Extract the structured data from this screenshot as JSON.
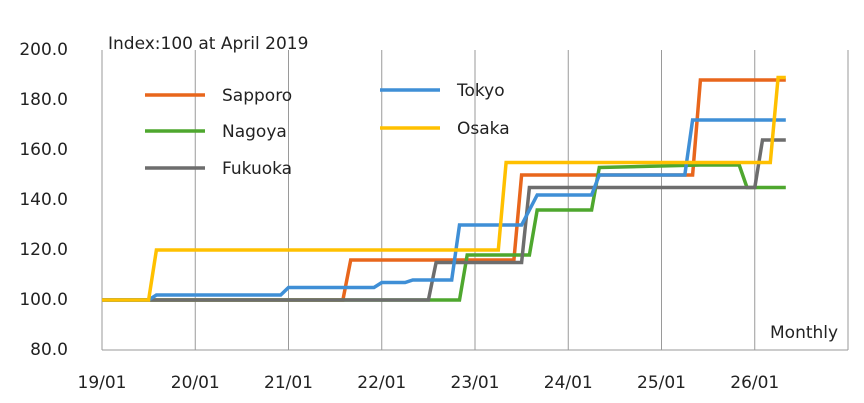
{
  "chart_data": {
    "type": "line",
    "annotations": [
      "Index:100 at April 2019",
      "Monthly"
    ],
    "xlim": [
      "19/01",
      "27/01"
    ],
    "xticks": [
      "19/01",
      "20/01",
      "21/01",
      "22/01",
      "23/01",
      "24/01",
      "25/01",
      "26/01"
    ],
    "ylim": [
      80,
      200
    ],
    "yticks": [
      {
        "value": 80,
        "label": "80.0"
      },
      {
        "value": 100,
        "label": "100.0"
      },
      {
        "value": 120,
        "label": "120.0"
      },
      {
        "value": 140,
        "label": "140.0"
      },
      {
        "value": 160,
        "label": "160.0"
      },
      {
        "value": 180,
        "label": "180.0"
      },
      {
        "value": 200,
        "label": "200.0"
      }
    ],
    "grid": "vertical",
    "series": [
      {
        "name": "Sapporo",
        "color": "#e8661c",
        "x": [
          "19/01",
          "21/08",
          "21/09",
          "23/06",
          "23/07",
          "25/05",
          "25/06",
          "26/05"
        ],
        "values": [
          100,
          100,
          116,
          116,
          150,
          150,
          188,
          188
        ]
      },
      {
        "name": "Nagoya",
        "color": "#4ea72e",
        "x": [
          "19/01",
          "22/11",
          "22/12",
          "23/08",
          "23/09",
          "24/04",
          "24/05",
          "25/06",
          "25/11",
          "25/12",
          "26/05"
        ],
        "values": [
          100,
          100,
          118,
          118,
          136,
          136,
          153,
          154,
          154,
          145,
          145
        ]
      },
      {
        "name": "Fukuoka",
        "color": "#6d6d6d",
        "x": [
          "19/01",
          "22/07",
          "22/08",
          "23/07",
          "23/08",
          "26/01",
          "26/02",
          "26/05"
        ],
        "values": [
          100,
          100,
          115,
          115,
          145,
          145,
          164,
          164
        ]
      },
      {
        "name": "Tokyo",
        "color": "#3f8fd6",
        "x": [
          "19/01",
          "19/07",
          "19/08",
          "20/12",
          "21/01",
          "21/12",
          "22/01",
          "22/04",
          "22/05",
          "22/10",
          "22/11",
          "23/07",
          "23/09",
          "24/04",
          "24/05",
          "25/04",
          "25/05",
          "26/05"
        ],
        "values": [
          100,
          100,
          102,
          102,
          105,
          105,
          107,
          107,
          108,
          108,
          130,
          130,
          142,
          142,
          150,
          150,
          172,
          172
        ]
      },
      {
        "name": "Osaka",
        "color": "#ffc000",
        "x": [
          "19/01",
          "19/07",
          "19/08",
          "23/04",
          "23/05",
          "26/03",
          "26/04",
          "26/05"
        ],
        "values": [
          100,
          100,
          120,
          120,
          155,
          155,
          189,
          189
        ]
      }
    ]
  }
}
